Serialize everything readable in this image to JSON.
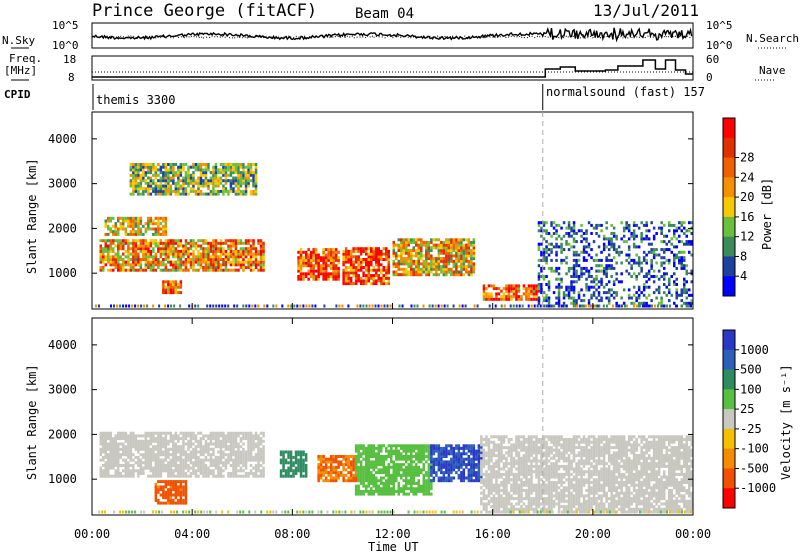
{
  "header": {
    "station": "Prince George (fitACF)",
    "beam": "Beam 04",
    "date": "13/Jul/2011"
  },
  "noise_panel": {
    "left_label": "N.Sky",
    "right_label": "N.Search",
    "left_ticks": [
      "10^5",
      "10^0"
    ],
    "right_ticks": [
      "10^5",
      "10^0"
    ]
  },
  "freq_panel": {
    "left_label_1": "Freq.",
    "left_label_2": "[MHz]",
    "left_ticks": [
      "18",
      "8"
    ],
    "right_label": "Nave",
    "right_ticks": [
      "60",
      "0"
    ]
  },
  "cpid_panel": {
    "label": "CPID",
    "segments": [
      {
        "name": "themis 3300",
        "start_hour": 0
      },
      {
        "name": "normalsound (fast) 157",
        "start_hour": 18
      }
    ]
  },
  "power_panel": {
    "ylabel": "Slant Range [km]",
    "y_ticks": [
      "1000",
      "2000",
      "3000",
      "4000"
    ],
    "colorbar_label": "Power [dB]",
    "colorbar_ticks": [
      "4",
      "8",
      "12",
      "16",
      "20",
      "24",
      "28"
    ],
    "colors": [
      "#0000ff",
      "#2040a0",
      "#3c8c5a",
      "#6abf3c",
      "#f5c800",
      "#f59000",
      "#f06000",
      "#e03000",
      "#ff0000"
    ]
  },
  "velocity_panel": {
    "ylabel": "Slant Range [km]",
    "y_ticks": [
      "1000",
      "2000",
      "3000",
      "4000"
    ],
    "colorbar_label": "Velocity [m s⁻¹]",
    "colorbar_ticks": [
      "1000",
      "500",
      "100",
      "25",
      "-25",
      "-100",
      "-500",
      "-1000"
    ],
    "colors": [
      "#2a38c8",
      "#2c60b8",
      "#2e8c60",
      "#58c040",
      "#c8c8c0",
      "#f5c000",
      "#f58c00",
      "#f05000",
      "#ff0000"
    ]
  },
  "xaxis": {
    "label": "Time UT",
    "ticks": [
      "00:00",
      "04:00",
      "08:00",
      "12:00",
      "16:00",
      "20:00",
      "00:00"
    ]
  },
  "chart_data": {
    "type": "heatmap",
    "title": "Prince George (fitACF)   Beam 04   13/Jul/2011",
    "xlabel": "Time UT",
    "ylabel": "Slant Range [km]",
    "xlim_hours": [
      0,
      24
    ],
    "ylim_km": [
      200,
      4600
    ],
    "mode_change_hour": 18,
    "power_regions_db": [
      {
        "t0": 0.3,
        "t1": 6.8,
        "r0": 1100,
        "r1": 1800,
        "level": 20
      },
      {
        "t0": 0.5,
        "t1": 3.0,
        "r0": 1900,
        "r1": 2300,
        "level": 16
      },
      {
        "t0": 2.8,
        "t1": 3.6,
        "r0": 600,
        "r1": 900,
        "level": 24
      },
      {
        "t0": 1.5,
        "t1": 6.5,
        "r0": 2800,
        "r1": 3500,
        "level": 12
      },
      {
        "t0": 8.2,
        "t1": 9.8,
        "r0": 900,
        "r1": 1600,
        "level": 26
      },
      {
        "t0": 10.0,
        "t1": 11.8,
        "r0": 800,
        "r1": 1600,
        "level": 27
      },
      {
        "t0": 12.0,
        "t1": 15.2,
        "r0": 1000,
        "r1": 1800,
        "level": 18
      },
      {
        "t0": 15.6,
        "t1": 17.9,
        "r0": 450,
        "r1": 800,
        "level": 24
      },
      {
        "t0": 17.8,
        "t1": 24.0,
        "r0": 300,
        "r1": 2200,
        "level": 6
      }
    ],
    "velocity_regions_ms": [
      {
        "t0": 0.3,
        "t1": 6.8,
        "r0": 1100,
        "r1": 2100,
        "level": 0
      },
      {
        "t0": 2.5,
        "t1": 3.8,
        "r0": 500,
        "r1": 1000,
        "level": -400
      },
      {
        "t0": 7.5,
        "t1": 8.5,
        "r0": 1100,
        "r1": 1700,
        "level": 150
      },
      {
        "t0": 9.0,
        "t1": 10.5,
        "r0": 1000,
        "r1": 1600,
        "level": -300
      },
      {
        "t0": 10.5,
        "t1": 13.5,
        "r0": 700,
        "r1": 1800,
        "level": 60
      },
      {
        "t0": 13.5,
        "t1": 15.5,
        "r0": 1000,
        "r1": 1800,
        "level": 700
      },
      {
        "t0": 15.5,
        "t1": 24.0,
        "r0": 300,
        "r1": 2000,
        "level": 0
      }
    ]
  }
}
